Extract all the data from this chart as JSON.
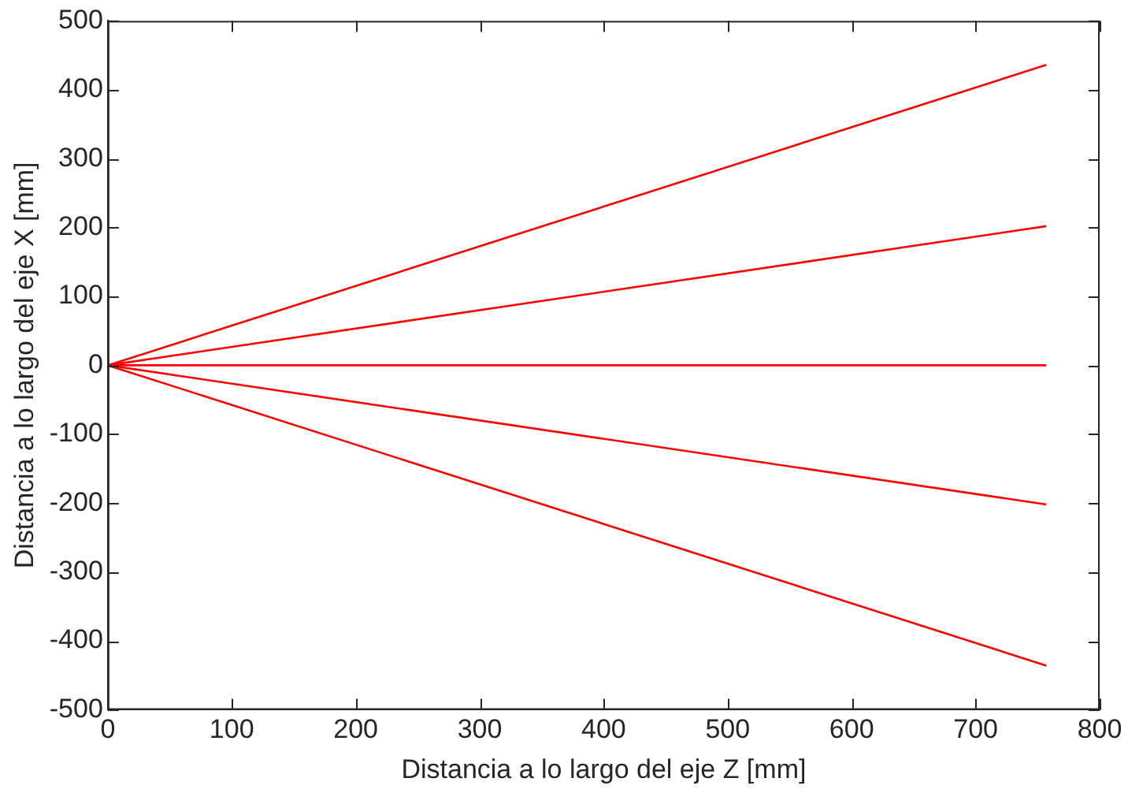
{
  "chart_data": {
    "type": "line",
    "xlabel": "Distancia a lo largo del eje Z [mm]",
    "ylabel": "Distancia a lo largo del eje X [mm]",
    "xlim": [
      0,
      800
    ],
    "xticks": [
      0,
      100,
      200,
      300,
      400,
      500,
      600,
      700,
      800
    ],
    "ylim": [
      -500,
      500
    ],
    "yticks": [
      -500,
      -400,
      -300,
      -200,
      -100,
      0,
      100,
      200,
      300,
      400,
      500
    ],
    "grid": false,
    "legend": false,
    "marker": "none",
    "line_style": "solid",
    "x": [
      0,
      757
    ],
    "series": [
      {
        "color": "#ff0000",
        "values": [
          0,
          436
        ]
      },
      {
        "color": "#ff0000",
        "values": [
          0,
          202
        ]
      },
      {
        "color": "#ff0000",
        "values": [
          0,
          0
        ]
      },
      {
        "color": "#ff0000",
        "values": [
          0,
          -202
        ]
      },
      {
        "color": "#ff0000",
        "values": [
          0,
          -436
        ]
      }
    ]
  }
}
